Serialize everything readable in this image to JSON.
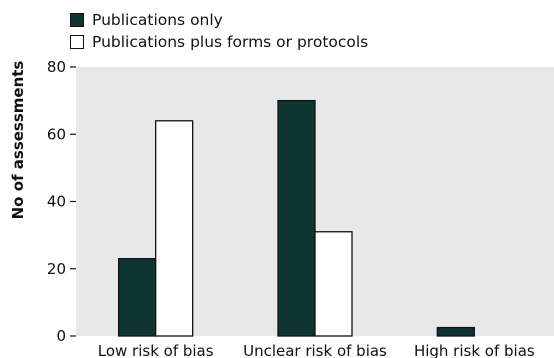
{
  "chart_data": {
    "type": "bar",
    "categories": [
      "Low risk of bias",
      "Unclear risk of bias",
      "High risk of bias"
    ],
    "series": [
      {
        "name": "Publications only",
        "values": [
          23,
          70,
          2.5
        ],
        "color": "#0f3533"
      },
      {
        "name": "Publications plus forms or protocols",
        "values": [
          64,
          31,
          0
        ],
        "color": "#ffffff"
      }
    ],
    "ylabel": "No of assessments",
    "xlabel": "",
    "ylim": [
      0,
      80
    ],
    "yticks": [
      0,
      20,
      40,
      60,
      80
    ],
    "plot_background": "#e8e8e8",
    "grid": false,
    "legend": "top-left"
  }
}
